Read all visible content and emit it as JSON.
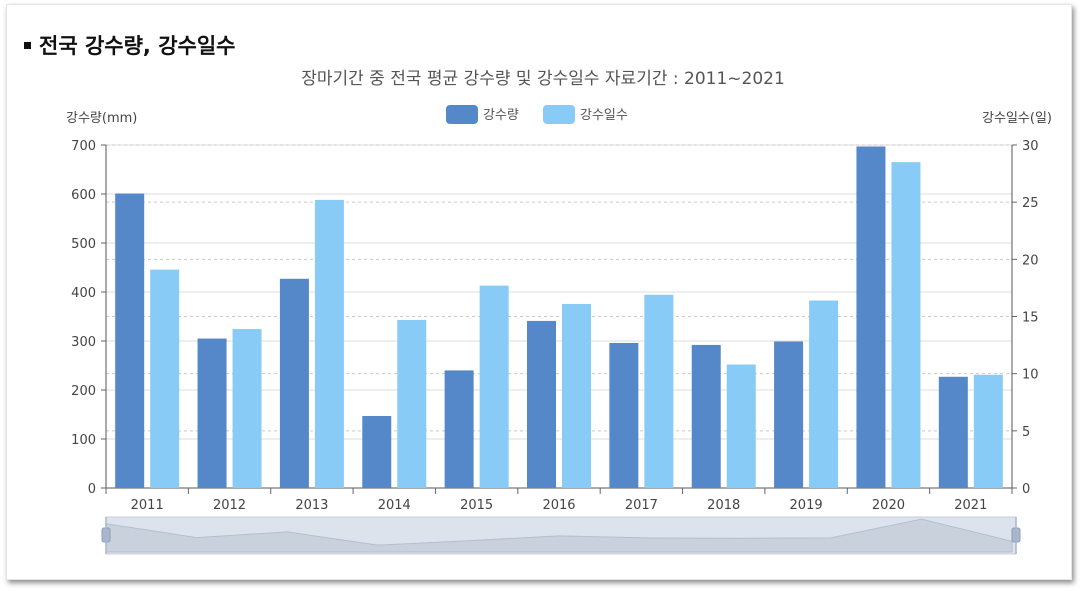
{
  "section_heading": "전국 강수량, 강수일수",
  "chart_data": {
    "type": "bar",
    "title": "장마기간 중 전국 평균 강수량 및 강수일수 자료기간 : 2011~2021",
    "categories": [
      "2011",
      "2012",
      "2013",
      "2014",
      "2015",
      "2016",
      "2017",
      "2018",
      "2019",
      "2020",
      "2021"
    ],
    "series": [
      {
        "name": "강수량",
        "axis": "left",
        "color": "#5588c8",
        "values": [
          601,
          305,
          427,
          147,
          240,
          341,
          296,
          292,
          299,
          697,
          227
        ]
      },
      {
        "name": "강수일수",
        "axis": "right",
        "color": "#88cbf6",
        "values": [
          19.1,
          13.9,
          25.2,
          14.7,
          17.7,
          16.1,
          16.9,
          10.8,
          16.4,
          28.5,
          9.9
        ]
      }
    ],
    "ylabel_left": "강수량(mm)",
    "ylabel_right": "강수일수(일)",
    "ylim_left": [
      0,
      700
    ],
    "yticks_left": [
      0,
      100,
      200,
      300,
      400,
      500,
      600,
      700
    ],
    "ylim_right": [
      0,
      30
    ],
    "yticks_right": [
      0,
      5,
      10,
      15,
      20,
      25,
      30
    ],
    "legend": "top-center",
    "grid": true,
    "zoom_slider": true
  }
}
